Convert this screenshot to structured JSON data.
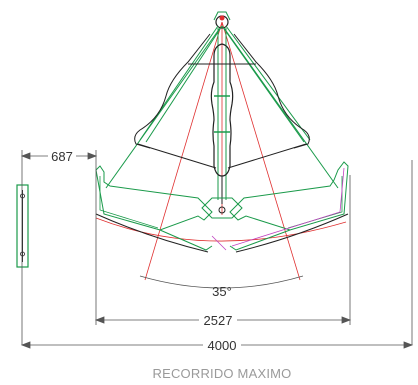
{
  "labels": {
    "angle": "35°",
    "dim_offset": "687",
    "dim_spread": "2527",
    "dim_total": "4000",
    "caption": "RECORRIDO MAXIMO"
  },
  "colors": {
    "outline": "#222222",
    "structure": "#1a9a4a",
    "reach_lines": "#e03030",
    "hydraulic": "#c040c0",
    "dimension": "#555555"
  }
}
